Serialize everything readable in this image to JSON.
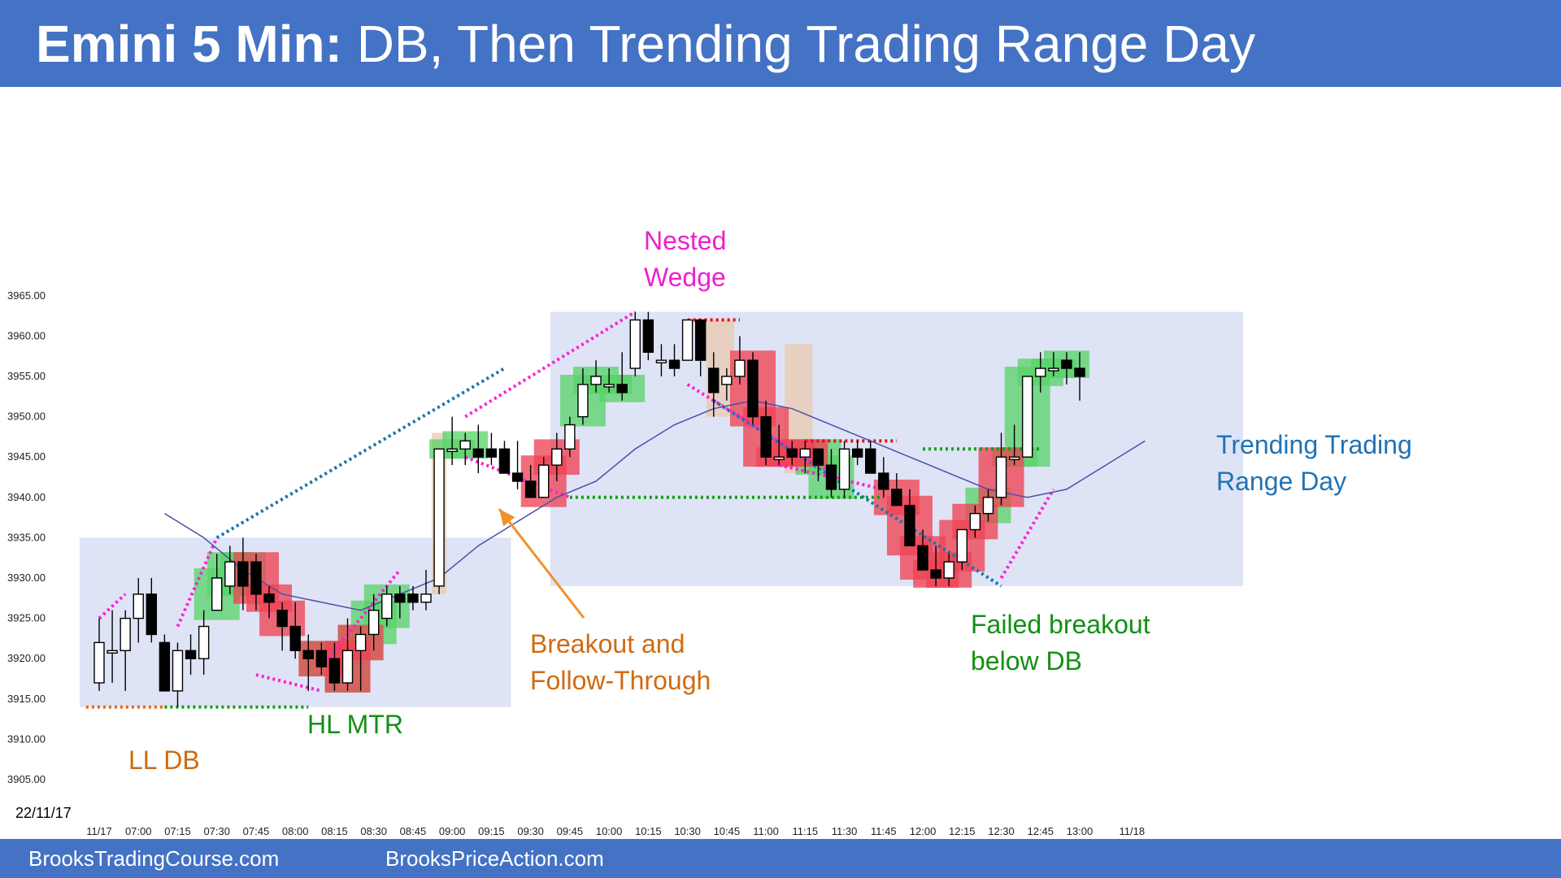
{
  "header": {
    "title_bold": "Emini 5 Min:",
    "title_rest": " DB, Then Trending Trading Range Day"
  },
  "footer": {
    "left": "BrooksTradingCourse.com",
    "right": "BrooksPriceAction.com"
  },
  "date_label": "22/11/17",
  "colors": {
    "banner": "#4472c4",
    "bull_signal": "#5bd36b",
    "bear_signal": "#ee4455",
    "range_box": "#dfe3f6",
    "ema": "#4a50a8",
    "magenta": "#ff1fd2",
    "teal": "#1a74a8",
    "green_line": "#14a014",
    "orange": "#e66b12",
    "red_line": "#e0101a"
  },
  "annotations": {
    "ll_db": "LL DB",
    "hl_mtr": "HL MTR",
    "breakout_1": "Breakout and",
    "breakout_2": "Follow-Through",
    "nested_1": "Nested",
    "nested_2": "Wedge",
    "failed_1": "Failed breakout",
    "failed_2": "below DB",
    "trtr_1": "Trending Trading",
    "trtr_2": "Range Day"
  },
  "chart_data": {
    "type": "candlestick",
    "title": "",
    "ylim": [
      3903,
      3968
    ],
    "yticks": [
      "3905.00",
      "3910.00",
      "3915.00",
      "3920.00",
      "3925.00",
      "3930.00",
      "3935.00",
      "3940.00",
      "3945.00",
      "3950.00",
      "3955.00",
      "3960.00",
      "3965.00"
    ],
    "xticks": [
      {
        "label": "11/17",
        "bar": 0
      },
      {
        "label": "07:00",
        "bar": 3
      },
      {
        "label": "07:15",
        "bar": 6
      },
      {
        "label": "07:30",
        "bar": 9
      },
      {
        "label": "07:45",
        "bar": 12
      },
      {
        "label": "08:00",
        "bar": 15
      },
      {
        "label": "08:15",
        "bar": 18
      },
      {
        "label": "08:30",
        "bar": 21
      },
      {
        "label": "08:45",
        "bar": 24
      },
      {
        "label": "09:00",
        "bar": 27
      },
      {
        "label": "09:15",
        "bar": 30
      },
      {
        "label": "09:30",
        "bar": 33
      },
      {
        "label": "09:45",
        "bar": 36
      },
      {
        "label": "10:00",
        "bar": 39
      },
      {
        "label": "10:15",
        "bar": 42
      },
      {
        "label": "10:30",
        "bar": 45
      },
      {
        "label": "10:45",
        "bar": 48
      },
      {
        "label": "11:00",
        "bar": 51
      },
      {
        "label": "11:15",
        "bar": 54
      },
      {
        "label": "11:30",
        "bar": 57
      },
      {
        "label": "11:45",
        "bar": 60
      },
      {
        "label": "12:00",
        "bar": 63
      },
      {
        "label": "12:15",
        "bar": 66
      },
      {
        "label": "12:30",
        "bar": 69
      },
      {
        "label": "12:45",
        "bar": 72
      },
      {
        "label": "13:00",
        "bar": 75
      },
      {
        "label": "11/18",
        "bar": 79
      }
    ],
    "bars": [
      [
        3917,
        3925,
        3916,
        3922
      ],
      [
        3921,
        3926,
        3917,
        3921
      ],
      [
        3921,
        3926,
        3916,
        3925
      ],
      [
        3925,
        3930,
        3922,
        3928
      ],
      [
        3928,
        3930,
        3922,
        3923
      ],
      [
        3922,
        3923,
        3916,
        3916
      ],
      [
        3916,
        3922,
        3914,
        3921
      ],
      [
        3921,
        3923,
        3918,
        3920
      ],
      [
        3920,
        3926,
        3918,
        3924
      ],
      [
        3926,
        3933,
        3926,
        3930
      ],
      [
        3929,
        3934,
        3928,
        3932
      ],
      [
        3932,
        3935,
        3926,
        3929
      ],
      [
        3932,
        3933,
        3926,
        3928
      ],
      [
        3928,
        3929,
        3925,
        3927
      ],
      [
        3926,
        3927,
        3921,
        3924
      ],
      [
        3924,
        3927,
        3920,
        3921
      ],
      [
        3921,
        3923,
        3916,
        3920
      ],
      [
        3921,
        3922,
        3918,
        3919
      ],
      [
        3920,
        3922,
        3916,
        3917
      ],
      [
        3917,
        3925,
        3916,
        3921
      ],
      [
        3921,
        3924,
        3916,
        3923
      ],
      [
        3923,
        3928,
        3921,
        3926
      ],
      [
        3925,
        3929,
        3924,
        3928
      ],
      [
        3928,
        3929,
        3925,
        3927
      ],
      [
        3928,
        3929,
        3926,
        3927
      ],
      [
        3927,
        3931,
        3926,
        3928
      ],
      [
        3929,
        3946,
        3928,
        3946
      ],
      [
        3946,
        3950,
        3944,
        3946
      ],
      [
        3946,
        3948,
        3944,
        3947
      ],
      [
        3946,
        3949,
        3943,
        3945
      ],
      [
        3946,
        3948,
        3944,
        3945
      ],
      [
        3946,
        3947,
        3944,
        3943
      ],
      [
        3943,
        3947,
        3941,
        3942
      ],
      [
        3942,
        3944,
        3940,
        3940
      ],
      [
        3940,
        3945,
        3940,
        3944
      ],
      [
        3944,
        3948,
        3942,
        3946
      ],
      [
        3946,
        3950,
        3945,
        3949
      ],
      [
        3950,
        3956,
        3949,
        3954
      ],
      [
        3954,
        3957,
        3953,
        3955
      ],
      [
        3954,
        3956,
        3953,
        3954
      ],
      [
        3954,
        3958,
        3952,
        3953
      ],
      [
        3956,
        3963,
        3955,
        3962
      ],
      [
        3962,
        3963,
        3957,
        3958
      ],
      [
        3957,
        3959,
        3955,
        3957
      ],
      [
        3957,
        3959,
        3955,
        3956
      ],
      [
        3957,
        3962,
        3957,
        3962
      ],
      [
        3962,
        3962,
        3955,
        3957
      ],
      [
        3956,
        3958,
        3950,
        3953
      ],
      [
        3954,
        3956,
        3952,
        3955
      ],
      [
        3955,
        3960,
        3954,
        3957
      ],
      [
        3957,
        3958,
        3949,
        3950
      ],
      [
        3950,
        3952,
        3944,
        3945
      ],
      [
        3945,
        3949,
        3944,
        3945
      ],
      [
        3946,
        3947,
        3944,
        3945
      ],
      [
        3945,
        3947,
        3943,
        3946
      ],
      [
        3946,
        3946,
        3942,
        3944
      ],
      [
        3944,
        3946,
        3940,
        3941
      ],
      [
        3941,
        3947,
        3940,
        3946
      ],
      [
        3946,
        3947,
        3944,
        3945
      ],
      [
        3946,
        3947,
        3943,
        3943
      ],
      [
        3943,
        3945,
        3940,
        3941
      ],
      [
        3941,
        3943,
        3939,
        3939
      ],
      [
        3939,
        3941,
        3934,
        3934
      ],
      [
        3934,
        3936,
        3931,
        3931
      ],
      [
        3931,
        3934,
        3929,
        3930
      ],
      [
        3930,
        3933,
        3929,
        3932
      ],
      [
        3932,
        3936,
        3931,
        3936
      ],
      [
        3936,
        3939,
        3935,
        3938
      ],
      [
        3938,
        3941,
        3937,
        3940
      ],
      [
        3940,
        3948,
        3939,
        3945
      ],
      [
        3945,
        3949,
        3944,
        3945
      ],
      [
        3945,
        3955,
        3945,
        3955
      ],
      [
        3955,
        3958,
        3953,
        3956
      ],
      [
        3956,
        3958,
        3955,
        3956
      ],
      [
        3957,
        3958,
        3954,
        3956
      ],
      [
        3956,
        3958,
        3952,
        3955
      ]
    ],
    "ema_20": [
      [
        5,
        3938
      ],
      [
        8,
        3935
      ],
      [
        11,
        3931
      ],
      [
        14,
        3928
      ],
      [
        17,
        3927
      ],
      [
        20,
        3926
      ],
      [
        23,
        3928
      ],
      [
        26,
        3930
      ],
      [
        29,
        3934
      ],
      [
        32,
        3937
      ],
      [
        35,
        3940
      ],
      [
        38,
        3942
      ],
      [
        41,
        3946
      ],
      [
        44,
        3949
      ],
      [
        47,
        3951
      ],
      [
        50,
        3952
      ],
      [
        53,
        3951
      ],
      [
        56,
        3949
      ],
      [
        59,
        3947
      ],
      [
        62,
        3945
      ],
      [
        65,
        3943
      ],
      [
        68,
        3941
      ],
      [
        71,
        3940
      ],
      [
        74,
        3941
      ],
      [
        77,
        3944
      ],
      [
        80,
        3947
      ]
    ],
    "trading_ranges": [
      {
        "from_bar": -1,
        "to_bar": 31,
        "low": 3914,
        "high": 3935
      },
      {
        "from_bar": 35,
        "to_bar": 87,
        "low": 3929,
        "high": 3963
      }
    ],
    "bull_signal_bars": [
      9,
      10,
      11,
      17,
      19,
      20,
      21,
      22,
      27,
      28,
      37,
      38,
      39,
      40,
      55,
      56,
      68,
      70,
      71,
      72,
      73,
      74
    ],
    "bear_signal_bars": [
      12,
      13,
      14,
      17,
      19,
      20,
      34,
      35,
      50,
      51,
      52,
      53,
      54,
      61,
      62,
      63,
      64,
      65,
      66,
      67,
      69
    ]
  }
}
